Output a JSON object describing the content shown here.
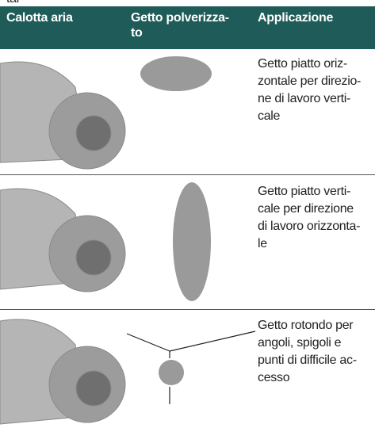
{
  "top_fragment": "tal",
  "header": [
    [
      "Calotta aria"
    ],
    [
      "Getto polverizza-",
      "to"
    ],
    [
      "Applicazione"
    ]
  ],
  "rows": [
    [
      "Getto piatto oriz-",
      "zontale per direzio-",
      "ne di lavoro verti-",
      "cale"
    ],
    [
      "Getto piatto verti-",
      "cale per direzione",
      "di lavoro orizzonta-",
      "le"
    ],
    [
      "Getto rotondo per",
      "angoli, spigoli e",
      "punti di difficile ac-",
      "cesso"
    ]
  ]
}
